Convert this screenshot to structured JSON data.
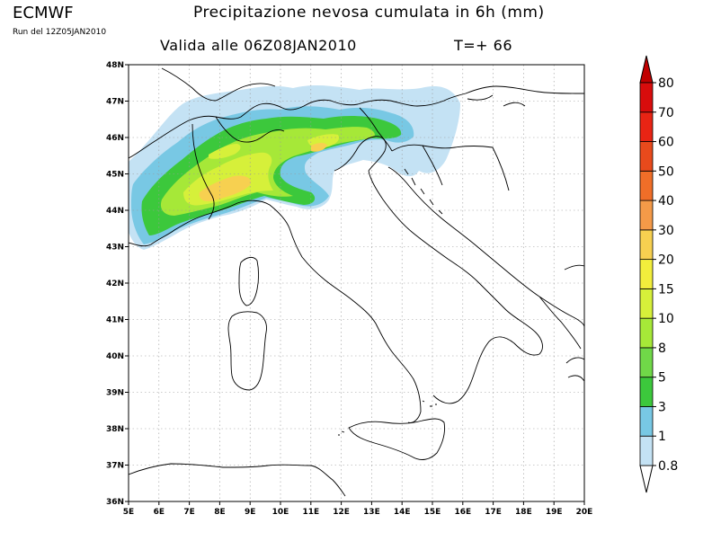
{
  "header": {
    "brand": "ECMWF",
    "run": "Run del 12Z05JAN2010",
    "title": "Precipitazione nevosa cumulata in 6h (mm)",
    "valid": "Valida alle 06Z08JAN2010",
    "step": "T=+ 66"
  },
  "map": {
    "lon_range": [
      5,
      20
    ],
    "lat_range": [
      36,
      48
    ],
    "grid": true,
    "lat_labels": [
      "36N",
      "37N",
      "38N",
      "39N",
      "40N",
      "41N",
      "42N",
      "43N",
      "44N",
      "45N",
      "46N",
      "47N",
      "48N"
    ],
    "lon_labels": [
      "5E",
      "6E",
      "7E",
      "8E",
      "9E",
      "10E",
      "11E",
      "12E",
      "13E",
      "14E",
      "15E",
      "16E",
      "17E",
      "18E",
      "19E",
      "20E"
    ]
  },
  "colorbar": {
    "levels": [
      "0.8",
      "1",
      "3",
      "5",
      "8",
      "10",
      "15",
      "20",
      "30",
      "40",
      "50",
      "60",
      "70",
      "80"
    ],
    "colors": [
      "#e8f8ee",
      "#c4e2f4",
      "#78c8e4",
      "#3cc83c",
      "#70d848",
      "#a6e838",
      "#d6f03a",
      "#f2ee3c",
      "#f7d050",
      "#f49a48",
      "#f06e28",
      "#e84a1c",
      "#e82414",
      "#d80c0c",
      "#c00000"
    ]
  }
}
